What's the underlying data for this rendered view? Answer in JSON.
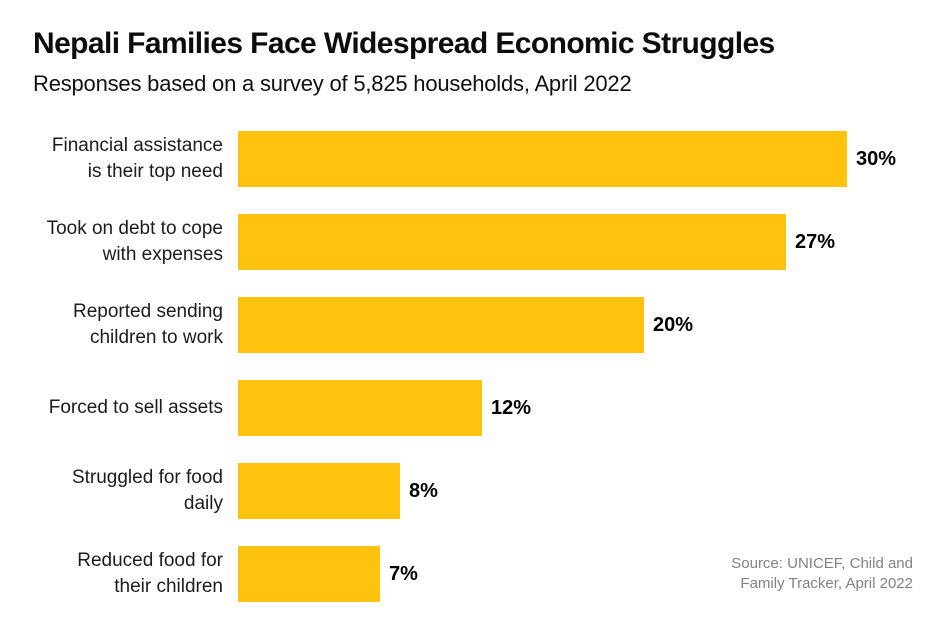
{
  "header": {
    "title": "Nepali Families Face Widespread Economic Struggles",
    "subtitle": "Responses based on a survey of 5,825 households, April 2022"
  },
  "chart_data": {
    "type": "bar",
    "orientation": "horizontal",
    "title": "Nepali Families Face Widespread Economic Struggles",
    "subtitle": "Responses based on a survey of 5,825 households, April 2022",
    "categories": [
      "Financial assistance is their top need",
      "Took on debt to cope with expenses",
      "Reported sending children to work",
      "Forced to sell assets",
      "Struggled for food daily",
      "Reduced food for their children"
    ],
    "category_lines": [
      [
        "Financial assistance",
        "is their top need"
      ],
      [
        "Took on debt to cope",
        "with expenses"
      ],
      [
        "Reported sending",
        "children to work"
      ],
      [
        "Forced to sell assets"
      ],
      [
        "Struggled for food daily"
      ],
      [
        "Reduced food for",
        "their children"
      ]
    ],
    "values": [
      30,
      27,
      20,
      12,
      8,
      7
    ],
    "value_labels": [
      "30%",
      "27%",
      "20%",
      "12%",
      "8%",
      "7%"
    ],
    "unit": "%",
    "xlim": [
      0,
      30
    ],
    "grid": false,
    "legend": false,
    "bar_color": "#FFC20E",
    "value_label_color": "#000000",
    "category_label_color": "#1c1c1c"
  },
  "source": {
    "line1": "Source: UNICEF, Child and",
    "line2": "Family Tracker, April 2022"
  }
}
